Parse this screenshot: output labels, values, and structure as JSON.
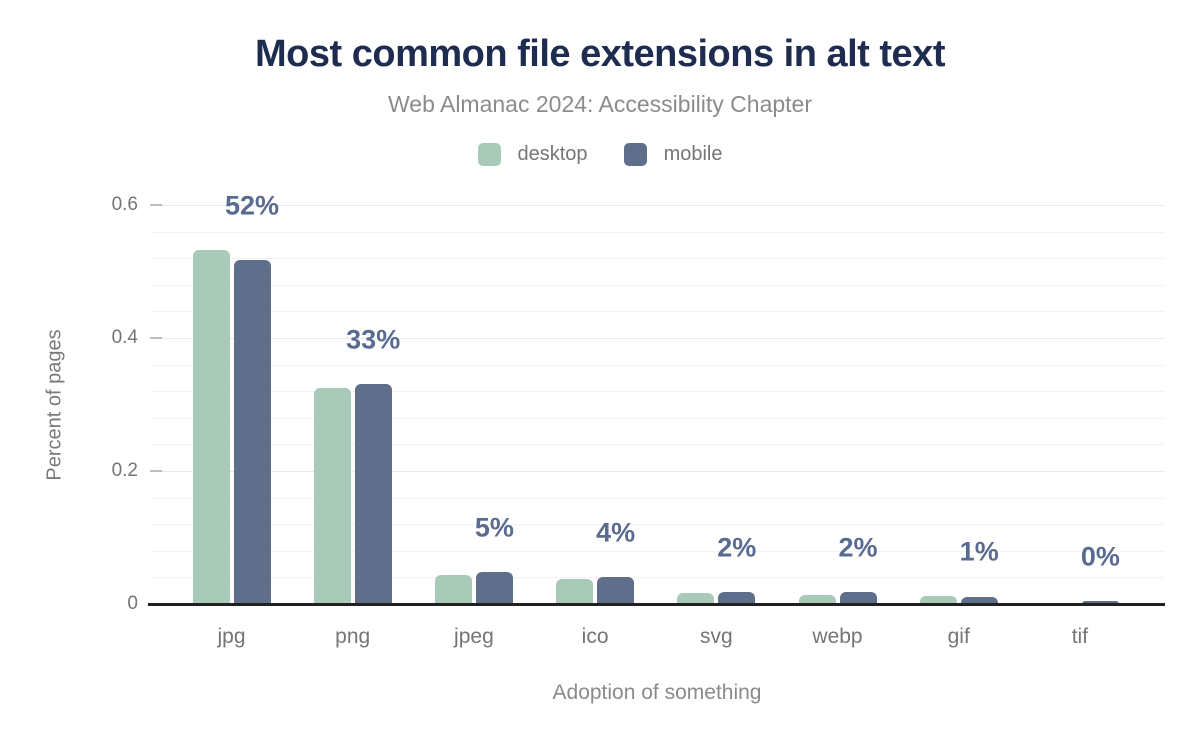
{
  "header": {
    "title": "Most common file extensions in alt text",
    "subtitle": "Web Almanac 2024: Accessibility Chapter"
  },
  "legend": [
    {
      "label": "desktop",
      "color": "#a9cab9"
    },
    {
      "label": "mobile",
      "color": "#5f6e8b"
    }
  ],
  "colors": {
    "title": "#1e2c4f",
    "subtitle_text": "#8b8b8b",
    "axis_text": "#757575",
    "value_label": "#5a6b91",
    "axis_line": "#212121",
    "gridline": "#f3f3f3",
    "desktop_series": "#a9cab9",
    "mobile_series": "#5f6e8b"
  },
  "chart_data": {
    "type": "bar",
    "title": "Most common file extensions in alt text",
    "subtitle": "Web Almanac 2024: Accessibility Chapter",
    "categories": [
      "jpg",
      "png",
      "jpeg",
      "ico",
      "svg",
      "webp",
      "gif",
      "tif"
    ],
    "series": [
      {
        "name": "desktop",
        "color": "#a9cab9",
        "values": [
          0.532,
          0.325,
          0.044,
          0.038,
          0.017,
          0.014,
          0.012,
          0.0
        ]
      },
      {
        "name": "mobile",
        "color": "#5f6e8b",
        "values": [
          0.518,
          0.331,
          0.048,
          0.041,
          0.018,
          0.018,
          0.011,
          0.004
        ]
      }
    ],
    "bar_labels": [
      "52%",
      "33%",
      "5%",
      "4%",
      "2%",
      "2%",
      "1%",
      "0%"
    ],
    "xlabel": "Adoption of something",
    "ylabel": "Percent of pages",
    "ylim": [
      0,
      0.6
    ],
    "y_ticks": [
      0,
      0.2,
      0.4,
      0.6
    ],
    "y_tick_labels": [
      "0",
      "0.2",
      "0.4",
      "0.6"
    ],
    "minor_grid_step": 0.04,
    "grid": true,
    "legend_position": "top"
  }
}
